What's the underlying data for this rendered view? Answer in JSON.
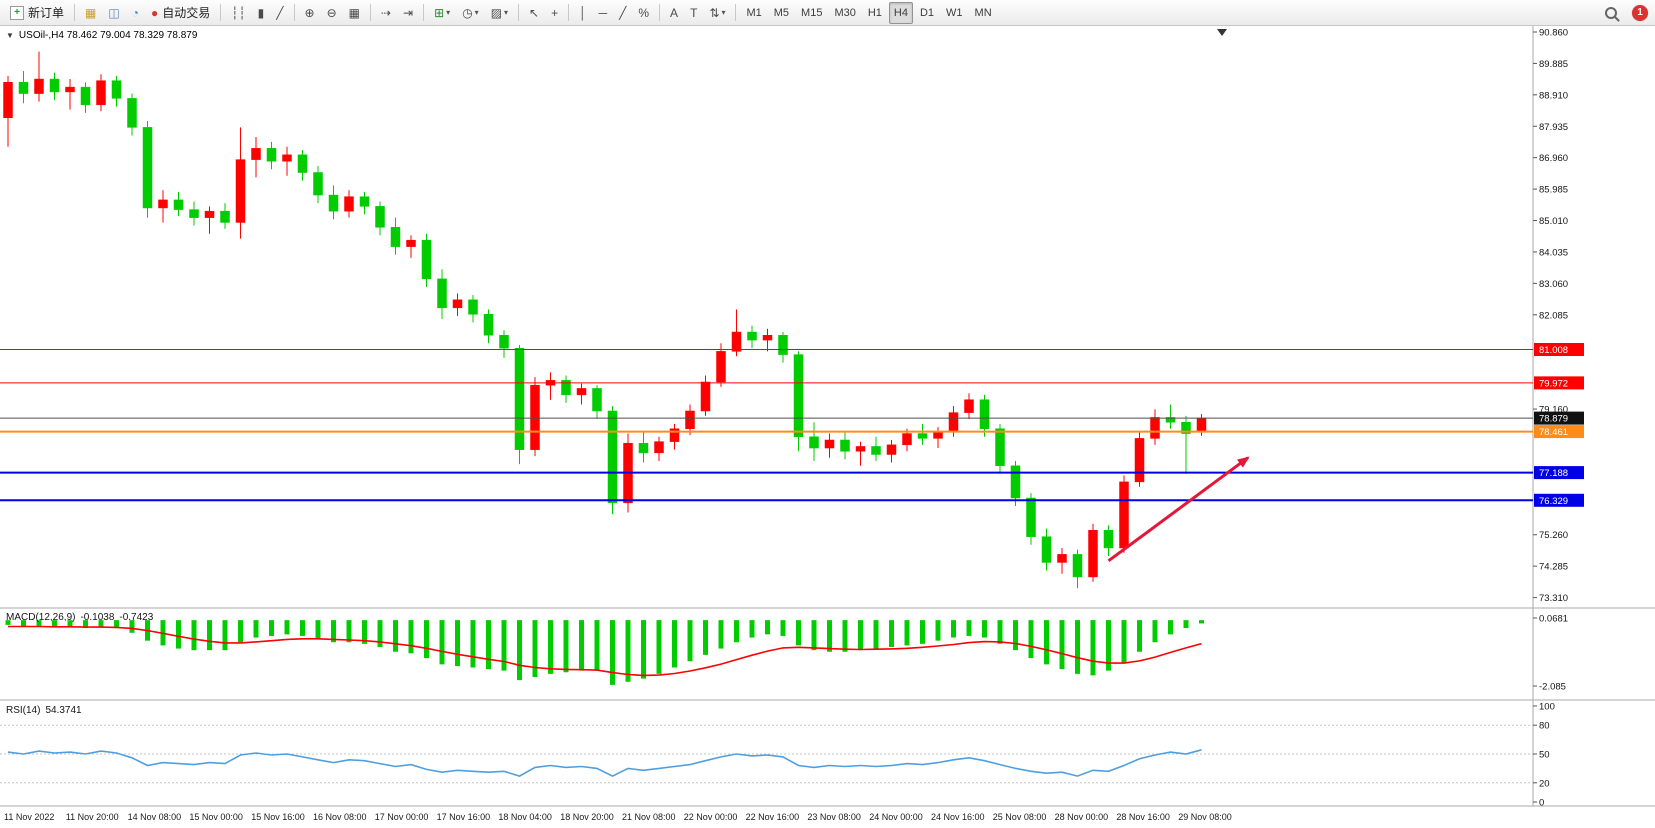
{
  "app": {
    "badge_count": "1"
  },
  "icons": {
    "dropdown_caret": "▾",
    "collapse_triangle": "▼"
  },
  "toolbar": {
    "groups": [
      {
        "name": "orders",
        "items": [
          {
            "name": "new-order-button",
            "glyph": "+",
            "glyph_color": "#1f9d1f",
            "boxed": true,
            "label": "新订单"
          }
        ]
      },
      {
        "name": "panels",
        "items": [
          {
            "name": "market-watch-button",
            "glyph": "▦",
            "glyph_color": "#c9a227"
          },
          {
            "name": "navigator-button",
            "glyph": "◫",
            "glyph_color": "#5b7fb9"
          },
          {
            "name": "terminal-button",
            "glyph": "◔",
            "glyph_color": "#3a8fc0"
          },
          {
            "name": "autotrading-button",
            "glyph": "●",
            "glyph_color": "#d23b2f",
            "label": "自动交易"
          }
        ]
      },
      {
        "name": "chart-types",
        "items": [
          {
            "name": "bar-chart-button",
            "glyph": "┆┆"
          },
          {
            "name": "candlestick-chart-button",
            "glyph": "▮"
          },
          {
            "name": "line-chart-button",
            "glyph": "╱"
          }
        ]
      },
      {
        "name": "zoom",
        "items": [
          {
            "name": "zoom-in-button",
            "glyph": "⊕"
          },
          {
            "name": "zoom-out-button",
            "glyph": "⊖"
          },
          {
            "name": "tile-windows-button",
            "glyph": "▦"
          }
        ]
      },
      {
        "name": "scroll",
        "items": [
          {
            "name": "auto-scroll-button",
            "glyph": "⇢"
          },
          {
            "name": "chart-shift-button",
            "glyph": "⇥"
          }
        ]
      },
      {
        "name": "chart-tools",
        "items": [
          {
            "name": "indicators-button",
            "glyph": "⊞",
            "glyph_color": "#2d8a2d",
            "dropdown": true
          },
          {
            "name": "periods-button",
            "glyph": "◷",
            "dropdown": true
          },
          {
            "name": "templates-button",
            "glyph": "▨",
            "dropdown": true
          }
        ]
      },
      {
        "name": "cursor-tools",
        "items": [
          {
            "name": "cursor-button",
            "glyph": "↖"
          },
          {
            "name": "crosshair-button",
            "glyph": "+"
          }
        ]
      },
      {
        "name": "line-tools",
        "items": [
          {
            "name": "vertical-line-button",
            "glyph": "│"
          },
          {
            "name": "horizontal-line-button",
            "glyph": "─"
          },
          {
            "name": "trendline-button",
            "glyph": "╱"
          },
          {
            "name": "fibonacci-button",
            "glyph": "%"
          }
        ]
      },
      {
        "name": "annotation-tools",
        "items": [
          {
            "name": "text-label-button",
            "glyph": "A"
          },
          {
            "name": "text-tool-button",
            "glyph": "T"
          },
          {
            "name": "arrows-button",
            "glyph": "⇅",
            "dropdown": true
          }
        ]
      },
      {
        "name": "timeframes",
        "items": [
          {
            "name": "tf-m1",
            "label": "M1"
          },
          {
            "name": "tf-m5",
            "label": "M5"
          },
          {
            "name": "tf-m15",
            "label": "M15"
          },
          {
            "name": "tf-m30",
            "label": "M30"
          },
          {
            "name": "tf-h1",
            "label": "H1"
          },
          {
            "name": "tf-h4",
            "label": "H4",
            "pressed": true
          },
          {
            "name": "tf-d1",
            "label": "D1"
          },
          {
            "name": "tf-w1",
            "label": "W1"
          },
          {
            "name": "tf-mn",
            "label": "MN"
          }
        ]
      }
    ],
    "right": {
      "badge": "1"
    }
  },
  "chart_data": [
    {
      "type": "candlestick",
      "symbol": "USOil-",
      "timeframe": "H4",
      "title": "USOil-,H4 78.462 79.004 78.329 78.879",
      "current_ohlc": {
        "open": "78.462",
        "high": "79.004",
        "low": "78.329",
        "close": "78.879"
      },
      "up_color": "#ff0000",
      "down_color": "#00cc00",
      "ylim": [
        73.235,
        90.86
      ],
      "y_ticks": [
        "90.860",
        "89.885",
        "88.910",
        "87.935",
        "86.960",
        "85.985",
        "85.010",
        "84.035",
        "83.060",
        "82.085",
        "81.110",
        "80.135",
        "79.160",
        "78.185",
        "77.210",
        "76.235",
        "75.260",
        "74.285",
        "73.310"
      ],
      "x_tick_labels": [
        "11 Nov 2022",
        "11 Nov 20:00",
        "14 Nov 08:00",
        "15 Nov 00:00",
        "15 Nov 16:00",
        "16 Nov 08:00",
        "17 Nov 00:00",
        "17 Nov 16:00",
        "18 Nov 04:00",
        "18 Nov 20:00",
        "21 Nov 08:00",
        "22 Nov 00:00",
        "22 Nov 16:00",
        "23 Nov 08:00",
        "24 Nov 00:00",
        "24 Nov 16:00",
        "25 Nov 08:00",
        "28 Nov 00:00",
        "28 Nov 16:00",
        "29 Nov 08:00"
      ],
      "horizontal_lines": [
        {
          "price": 81.008,
          "label": "81.008",
          "color": "#ff0000",
          "width": 1
        },
        {
          "price": 79.972,
          "label": "79.972",
          "color": "#ff0000",
          "width": 1
        },
        {
          "price": 78.879,
          "label": "78.879",
          "color": "#4d4d4d",
          "width": 1,
          "label_bg": "#111111"
        },
        {
          "price": 78.461,
          "label": "78.461",
          "color": "#ff8c1a",
          "width": 2
        },
        {
          "price": 77.188,
          "label": "77.188",
          "color": "#0000e6",
          "width": 2
        },
        {
          "price": 76.329,
          "label": "76.329",
          "color": "#0000e6",
          "width": 2
        }
      ],
      "arrow": {
        "from_bar": 71,
        "from_price": 74.45,
        "to_bar": 80,
        "to_price": 77.65,
        "color": "#e31837"
      },
      "candles": [
        [
          88.2,
          89.5,
          87.3,
          89.3
        ],
        [
          89.3,
          89.65,
          88.65,
          88.95
        ],
        [
          88.95,
          90.25,
          88.7,
          89.4
        ],
        [
          89.4,
          89.6,
          88.75,
          89.0
        ],
        [
          89.0,
          89.4,
          88.45,
          89.15
        ],
        [
          89.15,
          89.3,
          88.35,
          88.6
        ],
        [
          88.6,
          89.55,
          88.4,
          89.35
        ],
        [
          89.35,
          89.5,
          88.55,
          88.8
        ],
        [
          88.8,
          88.95,
          87.65,
          87.9
        ],
        [
          87.9,
          88.1,
          85.1,
          85.4
        ],
        [
          85.4,
          85.95,
          84.95,
          85.65
        ],
        [
          85.65,
          85.9,
          85.15,
          85.35
        ],
        [
          85.35,
          85.6,
          84.85,
          85.1
        ],
        [
          85.1,
          85.45,
          84.6,
          85.3
        ],
        [
          85.3,
          85.55,
          84.75,
          84.95
        ],
        [
          84.95,
          87.9,
          84.45,
          86.9
        ],
        [
          86.9,
          87.6,
          86.35,
          87.25
        ],
        [
          87.25,
          87.45,
          86.6,
          86.85
        ],
        [
          86.85,
          87.3,
          86.4,
          87.05
        ],
        [
          87.05,
          87.2,
          86.25,
          86.5
        ],
        [
          86.5,
          86.7,
          85.55,
          85.8
        ],
        [
          85.8,
          86.1,
          85.05,
          85.3
        ],
        [
          85.3,
          85.95,
          85.1,
          85.75
        ],
        [
          85.75,
          85.9,
          85.2,
          85.45
        ],
        [
          85.45,
          85.6,
          84.55,
          84.8
        ],
        [
          84.8,
          85.1,
          83.95,
          84.2
        ],
        [
          84.2,
          84.55,
          83.85,
          84.4
        ],
        [
          84.4,
          84.6,
          82.95,
          83.2
        ],
        [
          83.2,
          83.5,
          81.95,
          82.3
        ],
        [
          82.3,
          82.75,
          82.05,
          82.55
        ],
        [
          82.55,
          82.7,
          81.85,
          82.1
        ],
        [
          82.1,
          82.25,
          81.2,
          81.45
        ],
        [
          81.45,
          81.6,
          80.75,
          81.05
        ],
        [
          81.05,
          81.15,
          77.45,
          77.9
        ],
        [
          77.9,
          80.15,
          77.7,
          79.9
        ],
        [
          79.9,
          80.3,
          79.45,
          80.05
        ],
        [
          80.05,
          80.2,
          79.35,
          79.6
        ],
        [
          79.6,
          79.95,
          79.3,
          79.8
        ],
        [
          79.8,
          79.9,
          78.85,
          79.1
        ],
        [
          79.1,
          79.25,
          75.9,
          76.25
        ],
        [
          76.25,
          78.4,
          75.95,
          78.1
        ],
        [
          78.1,
          78.45,
          77.5,
          77.8
        ],
        [
          77.8,
          78.3,
          77.55,
          78.15
        ],
        [
          78.15,
          78.7,
          77.9,
          78.55
        ],
        [
          78.55,
          79.3,
          78.35,
          79.1
        ],
        [
          79.1,
          80.2,
          78.95,
          80.0
        ],
        [
          80.0,
          81.2,
          79.85,
          80.95
        ],
        [
          80.95,
          82.25,
          80.8,
          81.55
        ],
        [
          81.55,
          81.75,
          81.05,
          81.3
        ],
        [
          81.3,
          81.65,
          80.95,
          81.45
        ],
        [
          81.45,
          81.55,
          80.6,
          80.85
        ],
        [
          80.85,
          80.95,
          77.85,
          78.3
        ],
        [
          78.3,
          78.75,
          77.55,
          77.95
        ],
        [
          77.95,
          78.4,
          77.65,
          78.2
        ],
        [
          78.2,
          78.45,
          77.6,
          77.85
        ],
        [
          77.85,
          78.15,
          77.4,
          78.0
        ],
        [
          78.0,
          78.3,
          77.55,
          77.75
        ],
        [
          77.75,
          78.2,
          77.5,
          78.05
        ],
        [
          78.05,
          78.55,
          77.85,
          78.4
        ],
        [
          78.4,
          78.7,
          78.05,
          78.25
        ],
        [
          78.25,
          78.6,
          77.95,
          78.45
        ],
        [
          78.45,
          79.25,
          78.3,
          79.05
        ],
        [
          79.05,
          79.65,
          78.85,
          79.45
        ],
        [
          79.45,
          79.6,
          78.3,
          78.55
        ],
        [
          78.55,
          78.7,
          77.15,
          77.4
        ],
        [
          77.4,
          77.55,
          76.15,
          76.4
        ],
        [
          76.4,
          76.55,
          74.95,
          75.2
        ],
        [
          75.2,
          75.45,
          74.15,
          74.4
        ],
        [
          74.4,
          74.85,
          74.05,
          74.65
        ],
        [
          74.65,
          74.8,
          73.6,
          73.95
        ],
        [
          73.95,
          75.6,
          73.8,
          75.4
        ],
        [
          75.4,
          75.55,
          74.6,
          74.85
        ],
        [
          74.85,
          77.1,
          74.7,
          76.9
        ],
        [
          76.9,
          78.45,
          76.75,
          78.25
        ],
        [
          78.25,
          79.15,
          78.05,
          78.9
        ],
        [
          78.9,
          79.3,
          78.55,
          78.75
        ],
        [
          78.75,
          78.95,
          77.15,
          78.4
        ],
        [
          78.462,
          79.004,
          78.329,
          78.879
        ]
      ]
    },
    {
      "type": "bar",
      "name": "MACD",
      "title": "MACD(12,26,9)",
      "current_main": "-0.1038",
      "current_signal": "-0.7423",
      "colors": {
        "histogram": "#00cc00",
        "signal": "#ff0000"
      },
      "scale": [
        {
          "text": "0.0681",
          "value": 0.0681
        },
        {
          "text": "-2.085",
          "value": -2.085
        }
      ],
      "values": [
        -0.15,
        -0.2,
        -0.18,
        -0.2,
        -0.22,
        -0.25,
        -0.22,
        -0.25,
        -0.4,
        -0.65,
        -0.8,
        -0.9,
        -0.95,
        -0.95,
        -0.95,
        -0.7,
        -0.55,
        -0.5,
        -0.45,
        -0.5,
        -0.6,
        -0.7,
        -0.7,
        -0.75,
        -0.85,
        -1.0,
        -1.05,
        -1.2,
        -1.4,
        -1.45,
        -1.5,
        -1.55,
        -1.6,
        -1.9,
        -1.8,
        -1.7,
        -1.65,
        -1.6,
        -1.6,
        -2.05,
        -1.95,
        -1.85,
        -1.7,
        -1.5,
        -1.3,
        -1.1,
        -0.9,
        -0.7,
        -0.55,
        -0.45,
        -0.5,
        -0.8,
        -0.95,
        -1.0,
        -1.0,
        -0.95,
        -0.9,
        -0.85,
        -0.8,
        -0.75,
        -0.65,
        -0.55,
        -0.5,
        -0.55,
        -0.75,
        -0.95,
        -1.2,
        -1.4,
        -1.55,
        -1.7,
        -1.75,
        -1.6,
        -1.35,
        -1.0,
        -0.7,
        -0.45,
        -0.25,
        -0.1038
      ],
      "signal": [
        -0.2,
        -0.2,
        -0.2,
        -0.21,
        -0.21,
        -0.22,
        -0.22,
        -0.23,
        -0.26,
        -0.33,
        -0.42,
        -0.51,
        -0.6,
        -0.67,
        -0.72,
        -0.72,
        -0.69,
        -0.65,
        -0.61,
        -0.59,
        -0.59,
        -0.61,
        -0.63,
        -0.65,
        -0.69,
        -0.75,
        -0.81,
        -0.89,
        -0.99,
        -1.08,
        -1.16,
        -1.24,
        -1.31,
        -1.43,
        -1.5,
        -1.54,
        -1.56,
        -1.57,
        -1.58,
        -1.66,
        -1.72,
        -1.75,
        -1.74,
        -1.69,
        -1.61,
        -1.51,
        -1.39,
        -1.25,
        -1.11,
        -0.98,
        -0.88,
        -0.86,
        -0.88,
        -0.9,
        -0.92,
        -0.93,
        -0.92,
        -0.91,
        -0.89,
        -0.86,
        -0.82,
        -0.77,
        -0.71,
        -0.68,
        -0.69,
        -0.74,
        -0.83,
        -0.94,
        -1.06,
        -1.19,
        -1.3,
        -1.36,
        -1.36,
        -1.29,
        -1.17,
        -1.02,
        -0.88,
        -0.7423
      ]
    },
    {
      "type": "line",
      "name": "RSI",
      "title": "RSI(14)",
      "current": "54.3741",
      "color": "#4f9fe0",
      "ylim": [
        0,
        100
      ],
      "levels": [
        80,
        50,
        20
      ],
      "scale": [
        {
          "text": "100",
          "value": 100
        },
        {
          "text": "80",
          "value": 80
        },
        {
          "text": "50",
          "value": 50
        },
        {
          "text": "20",
          "value": 20
        },
        {
          "text": "0",
          "value": 0
        }
      ],
      "values": [
        52,
        50,
        53,
        51,
        52,
        50,
        53,
        51,
        46,
        38,
        41,
        40,
        39,
        41,
        40,
        49,
        51,
        49,
        50,
        47,
        44,
        41,
        44,
        43,
        40,
        37,
        39,
        34,
        31,
        33,
        32,
        31,
        32,
        27,
        36,
        38,
        36,
        37,
        35,
        27,
        35,
        33,
        35,
        37,
        39,
        43,
        47,
        50,
        48,
        49,
        47,
        38,
        36,
        38,
        37,
        38,
        37,
        38,
        40,
        39,
        41,
        44,
        46,
        43,
        39,
        35,
        32,
        30,
        31,
        27,
        33,
        32,
        38,
        45,
        49,
        52,
        50,
        54.37
      ]
    }
  ]
}
